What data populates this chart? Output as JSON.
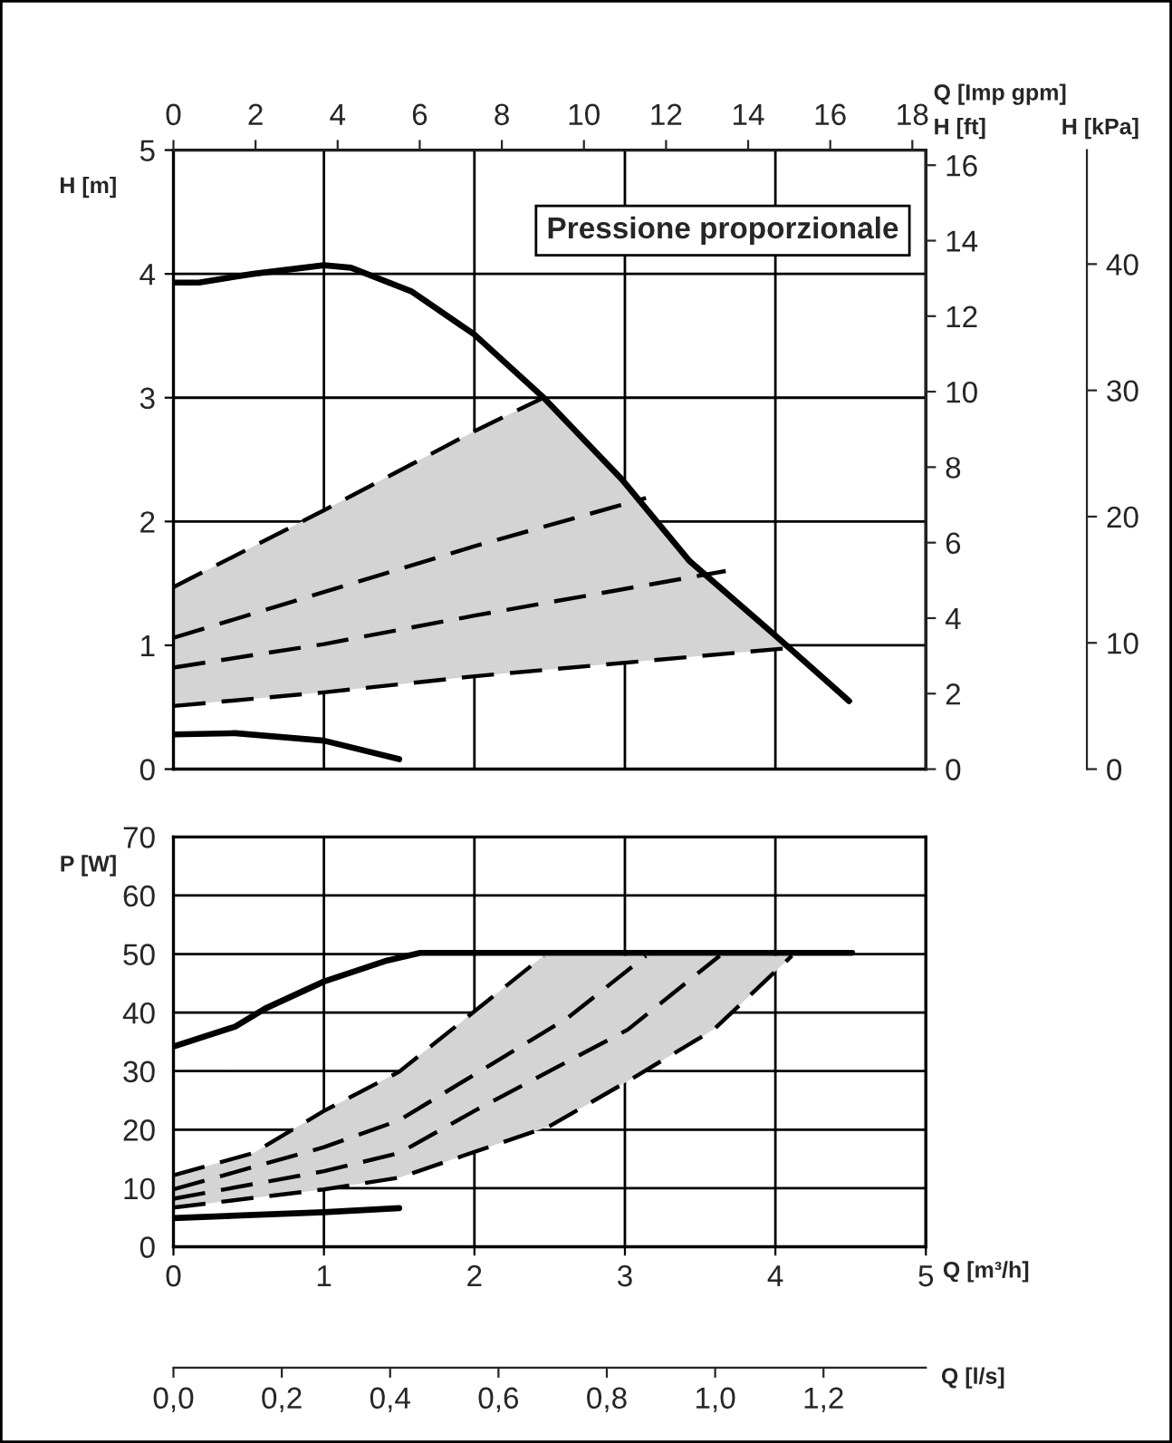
{
  "chart_data": [
    {
      "type": "line",
      "annotations": [
        "Pressione proporzionale"
      ],
      "xlim": [
        0,
        5
      ],
      "xticks": [
        0,
        1,
        2,
        3,
        4,
        5
      ],
      "tick_labels": "y",
      "ylabel": "H [m]",
      "ylim": [
        0,
        5
      ],
      "yticks": [
        0,
        1,
        2,
        3,
        4,
        5
      ],
      "x2label": "Q [Imp gpm]",
      "x2lim": [
        0,
        18.33
      ],
      "x2ticks": [
        0,
        2,
        4,
        6,
        8,
        10,
        12,
        14,
        16,
        18
      ],
      "y2label": "H [ft]",
      "y2lim": [
        0,
        16.4
      ],
      "y2ticks": [
        0,
        2,
        4,
        6,
        8,
        10,
        12,
        14,
        16
      ],
      "y3label": "H [kPa]",
      "y3lim": [
        0,
        49.03
      ],
      "y3ticks": [
        0,
        10,
        20,
        30,
        40
      ],
      "grid": true,
      "series": [
        {
          "color": "#000000",
          "line_style": "solid",
          "x": [
            0,
            0.17,
            0.53,
            1.0,
            1.18,
            1.58,
            2.0,
            2.46,
            2.98,
            3.43,
            3.99,
            4.49
          ],
          "values": [
            3.93,
            3.93,
            4.0,
            4.07,
            4.05,
            3.86,
            3.51,
            3.0,
            2.34,
            1.68,
            1.09,
            0.55
          ]
        },
        {
          "color": "#000000",
          "line_style": "solid",
          "x": [
            0,
            0.41,
            1,
            1.5
          ],
          "values": [
            0.28,
            0.29,
            0.23,
            0.08
          ]
        },
        {
          "color": "#000000",
          "line_style": "dashed",
          "x": [
            0,
            1,
            2,
            2.46
          ],
          "values": [
            1.47,
            2.09,
            2.73,
            3.0
          ]
        },
        {
          "color": "#000000",
          "line_style": "dashed",
          "x": [
            0,
            1,
            2,
            3.14
          ],
          "values": [
            1.06,
            1.43,
            1.8,
            2.19
          ]
        },
        {
          "color": "#000000",
          "line_style": "dashed",
          "x": [
            0,
            1,
            2,
            3.67
          ],
          "values": [
            0.82,
            1.01,
            1.24,
            1.6
          ]
        },
        {
          "color": "#000000",
          "line_style": "dashed",
          "x": [
            0,
            1,
            2,
            4.11
          ],
          "values": [
            0.51,
            0.62,
            0.75,
            0.98
          ]
        }
      ]
    },
    {
      "type": "line",
      "xlabel": "Q [m³/h]",
      "xlim": [
        0,
        5
      ],
      "xticks": [
        0,
        1,
        2,
        3,
        4,
        5
      ],
      "ylabel": "P [W]",
      "ylim": [
        0,
        70
      ],
      "yticks": [
        0,
        10,
        20,
        30,
        40,
        50,
        60,
        70
      ],
      "x2label": "Q [l/s]",
      "x2lim": [
        0,
        1.389
      ],
      "x2ticks": [
        {
          "value": 0,
          "label": "0,0"
        },
        {
          "value": 0.2,
          "label": "0,2"
        },
        {
          "value": 0.4,
          "label": "0,4"
        },
        {
          "value": 0.6,
          "label": "0,6"
        },
        {
          "value": 0.8,
          "label": "0,8"
        },
        {
          "value": 1.0,
          "label": "1,0"
        },
        {
          "value": 1.2,
          "label": "1,2"
        }
      ],
      "grid": true,
      "series": [
        {
          "color": "#000000",
          "line_style": "solid",
          "x": [
            0,
            0.41,
            0.61,
            1,
            1.42,
            1.64,
            4.51
          ],
          "values": [
            34.2,
            37.6,
            40.7,
            45.3,
            48.9,
            50.2,
            50.2
          ]
        },
        {
          "color": "#000000",
          "line_style": "solid",
          "x": [
            0,
            1,
            1.5
          ],
          "values": [
            4.9,
            5.9,
            6.6
          ]
        },
        {
          "color": "#000000",
          "line_style": "dashed",
          "x": [
            0,
            0.53,
            1,
            1.5,
            2,
            2.46
          ],
          "values": [
            12.2,
            16.0,
            23.2,
            29.9,
            40.2,
            49.7
          ]
        },
        {
          "color": "#000000",
          "line_style": "dashed",
          "x": [
            0,
            1,
            1.5,
            2,
            2.62,
            3.14
          ],
          "values": [
            9.8,
            17.0,
            21.6,
            29.4,
            39.1,
            49.7
          ]
        },
        {
          "color": "#000000",
          "line_style": "dashed",
          "x": [
            0,
            1,
            1.5,
            2,
            3.02,
            3.63
          ],
          "values": [
            8.2,
            12.9,
            16.0,
            23.2,
            37.1,
            49.7
          ]
        },
        {
          "color": "#000000",
          "line_style": "dashed",
          "x": [
            0,
            1,
            1.5,
            2.5,
            3.02,
            3.59,
            4.11
          ],
          "values": [
            6.7,
            9.8,
            11.8,
            20.6,
            28.3,
            37.1,
            49.7
          ]
        }
      ]
    }
  ]
}
